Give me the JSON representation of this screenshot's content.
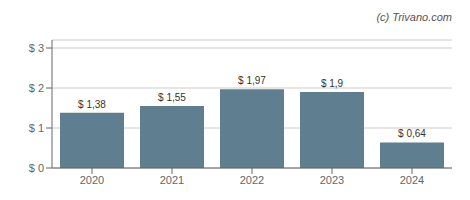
{
  "chart_data": {
    "type": "bar",
    "categories": [
      "2020",
      "2021",
      "2022",
      "2023",
      "2024"
    ],
    "values": [
      1.38,
      1.55,
      1.97,
      1.9,
      0.64
    ],
    "value_labels": [
      "$ 1,38",
      "$ 1,55",
      "$ 1,97",
      "$ 1,9",
      "$ 0,64"
    ],
    "data_labels": true,
    "color": "#5f7f90",
    "ylim": [
      0,
      3.2
    ],
    "yticks": [
      {
        "value": 0,
        "label": "$ 0"
      },
      {
        "value": 1,
        "label": "$ 1"
      },
      {
        "value": 2,
        "label": "$ 2"
      },
      {
        "value": 3,
        "label": "$ 3"
      }
    ],
    "grid": true,
    "annotations": [
      "(c) Trivano.com"
    ]
  }
}
